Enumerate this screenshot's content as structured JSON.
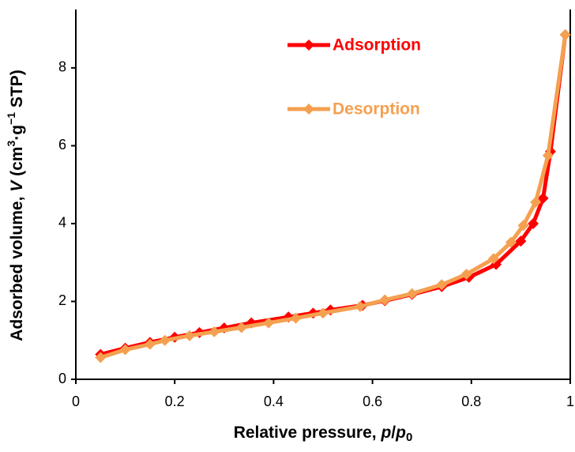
{
  "chart_data": {
    "type": "line",
    "xlabel_parts": [
      "Relative pressure, ",
      "p",
      "/",
      "p",
      "0"
    ],
    "ylabel_parts": [
      "Adsorbed volume, ",
      "V",
      " (cm",
      "3",
      "·g",
      "−1",
      " STP)"
    ],
    "xlim": [
      0,
      1
    ],
    "ylim": [
      0,
      9.5
    ],
    "xticks": [
      0,
      0.2,
      0.4,
      0.6,
      0.8,
      1
    ],
    "yticks": [
      0,
      2,
      4,
      6,
      8
    ],
    "series": [
      {
        "name": "Adsorption",
        "color": "#ff0000",
        "x": [
          0.05,
          0.1,
          0.15,
          0.2,
          0.25,
          0.3,
          0.355,
          0.43,
          0.48,
          0.515,
          0.58,
          0.625,
          0.68,
          0.74,
          0.795,
          0.85,
          0.9,
          0.925,
          0.945,
          0.96,
          0.99
        ],
        "values": [
          0.64,
          0.8,
          0.95,
          1.08,
          1.2,
          1.32,
          1.45,
          1.6,
          1.7,
          1.78,
          1.9,
          2.02,
          2.18,
          2.38,
          2.62,
          2.95,
          3.55,
          4.0,
          4.65,
          5.85,
          8.85
        ]
      },
      {
        "name": "Desorption",
        "color": "#f4a050",
        "x": [
          0.05,
          0.1,
          0.15,
          0.18,
          0.23,
          0.28,
          0.335,
          0.39,
          0.445,
          0.5,
          0.575,
          0.625,
          0.68,
          0.74,
          0.79,
          0.845,
          0.88,
          0.905,
          0.93,
          0.955,
          0.99
        ],
        "values": [
          0.56,
          0.76,
          0.9,
          1.0,
          1.12,
          1.22,
          1.33,
          1.45,
          1.57,
          1.7,
          1.87,
          2.04,
          2.2,
          2.43,
          2.7,
          3.1,
          3.52,
          3.95,
          4.55,
          5.75,
          8.85
        ]
      }
    ]
  }
}
